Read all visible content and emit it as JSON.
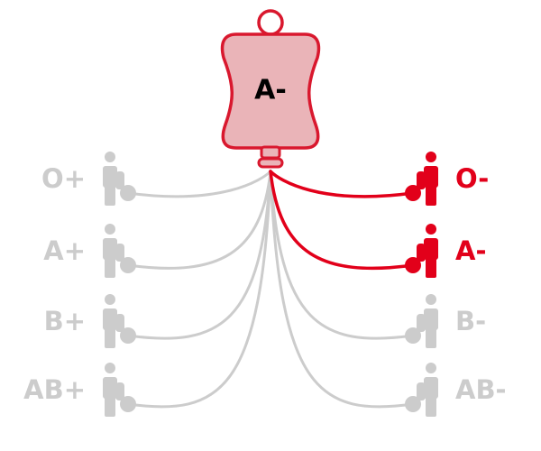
{
  "colors": {
    "active": "#e2001a",
    "inactive": "#cccccc",
    "bag_fill": "#eab4b8",
    "bag_stroke": "#d9182e",
    "bag_text": "#000000"
  },
  "donor_bag": {
    "blood_type": "A-"
  },
  "recipients": [
    {
      "blood_type": "O+",
      "compatible": false,
      "side": "left",
      "icon": "person-icon"
    },
    {
      "blood_type": "A+",
      "compatible": false,
      "side": "left",
      "icon": "person-icon"
    },
    {
      "blood_type": "B+",
      "compatible": false,
      "side": "left",
      "icon": "person-icon"
    },
    {
      "blood_type": "AB+",
      "compatible": false,
      "side": "left",
      "icon": "person-icon"
    },
    {
      "blood_type": "O-",
      "compatible": true,
      "side": "right",
      "icon": "person-icon"
    },
    {
      "blood_type": "A-",
      "compatible": true,
      "side": "right",
      "icon": "person-icon"
    },
    {
      "blood_type": "B-",
      "compatible": false,
      "side": "right",
      "icon": "person-icon"
    },
    {
      "blood_type": "AB-",
      "compatible": false,
      "side": "right",
      "icon": "person-icon"
    }
  ]
}
